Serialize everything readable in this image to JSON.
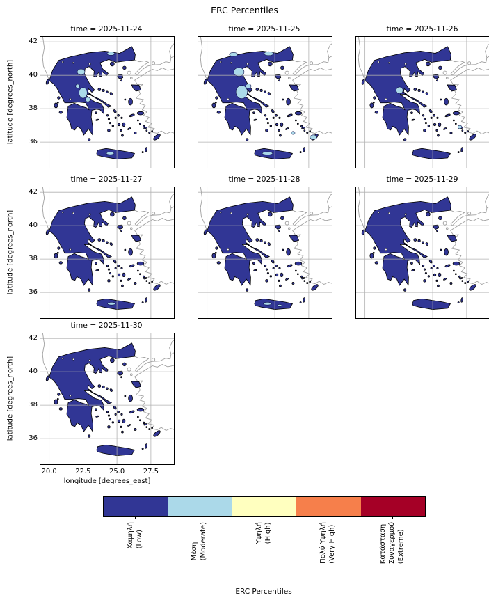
{
  "chart_data": {
    "type": "heatmap",
    "subtype": "faceted categorical choropleth maps of Greece (one per day)",
    "title": "ERC Percentiles",
    "xlabel": "longitude [degrees_east]",
    "ylabel": "latitude [degrees_north]",
    "x_ticks": [
      20.0,
      22.5,
      25.0,
      27.5
    ],
    "x_tick_labels": [
      "20.0",
      "22.5",
      "25.0",
      "27.5"
    ],
    "y_ticks": [
      42,
      40,
      38,
      36
    ],
    "y_tick_labels": [
      "42",
      "40",
      "38",
      "36"
    ],
    "xlim": [
      19.35,
      29.2
    ],
    "ylim": [
      34.45,
      42.3
    ],
    "grid": true,
    "land_outline_color": "#000000",
    "neighbor_coastline_color": "#9e9e9e",
    "legend_position": "bottom horizontal colorbar",
    "colorbar_label": "ERC Percentiles",
    "categories": [
      {
        "label": "Χαμηλή\n(Low)",
        "color": "#313695"
      },
      {
        "label": "Μέση\n(Moderate)",
        "color": "#abd9e9"
      },
      {
        "label": "Υψηλή\n(High)",
        "color": "#ffffbf"
      },
      {
        "label": "Πολύ Υψηλή\n(Very High)",
        "color": "#f67f4b"
      },
      {
        "label": "Κατάσταση\nΣυναγερμού\n(Extreme)",
        "color": "#a50026"
      }
    ],
    "facets": [
      {
        "title": "time = 2025-11-24",
        "dominant_class": "Χαμηλή (Low)",
        "moderate_patches_lonlat_deg": [
          [
            22.35,
            40.2,
            0.28,
            0.18
          ],
          [
            22.5,
            38.95,
            0.3,
            0.32
          ],
          [
            22.85,
            38.55,
            0.18,
            0.14
          ],
          [
            24.55,
            41.3,
            0.28,
            0.1
          ],
          [
            22.1,
            39.35,
            0.15,
            0.12
          ],
          [
            24.5,
            35.33,
            0.28,
            0.08
          ]
        ]
      },
      {
        "title": "time = 2025-11-25",
        "dominant_class": "Χαμηλή (Low)",
        "moderate_patches_lonlat_deg": [
          [
            21.95,
            41.25,
            0.3,
            0.12
          ],
          [
            22.35,
            40.2,
            0.38,
            0.26
          ],
          [
            22.55,
            39.0,
            0.42,
            0.4
          ],
          [
            23.05,
            39.35,
            0.2,
            0.14
          ],
          [
            24.55,
            41.3,
            0.34,
            0.12
          ],
          [
            24.45,
            35.33,
            0.38,
            0.09
          ],
          [
            27.85,
            36.3,
            0.25,
            0.13
          ],
          [
            26.35,
            36.55,
            0.13,
            0.09
          ]
        ]
      },
      {
        "title": "time = 2025-11-26",
        "dominant_class": "Χαμηλή (Low)",
        "moderate_patches_lonlat_deg": [
          [
            22.55,
            39.1,
            0.25,
            0.2
          ],
          [
            27.0,
            36.9,
            0.15,
            0.1
          ]
        ]
      },
      {
        "title": "time = 2025-11-27",
        "dominant_class": "Χαμηλή (Low)",
        "moderate_patches_lonlat_deg": [
          [
            24.6,
            35.33,
            0.3,
            0.08
          ]
        ]
      },
      {
        "title": "time = 2025-11-28",
        "dominant_class": "Χαμηλή (Low)",
        "moderate_patches_lonlat_deg": [
          [
            24.45,
            35.33,
            0.3,
            0.08
          ],
          [
            25.35,
            35.22,
            0.16,
            0.06
          ]
        ]
      },
      {
        "title": "time = 2025-11-29",
        "dominant_class": "Χαμηλή (Low)",
        "moderate_patches_lonlat_deg": []
      },
      {
        "title": "time = 2025-11-30",
        "dominant_class": "Χαμηλή (Low)",
        "moderate_patches_lonlat_deg": []
      }
    ]
  }
}
